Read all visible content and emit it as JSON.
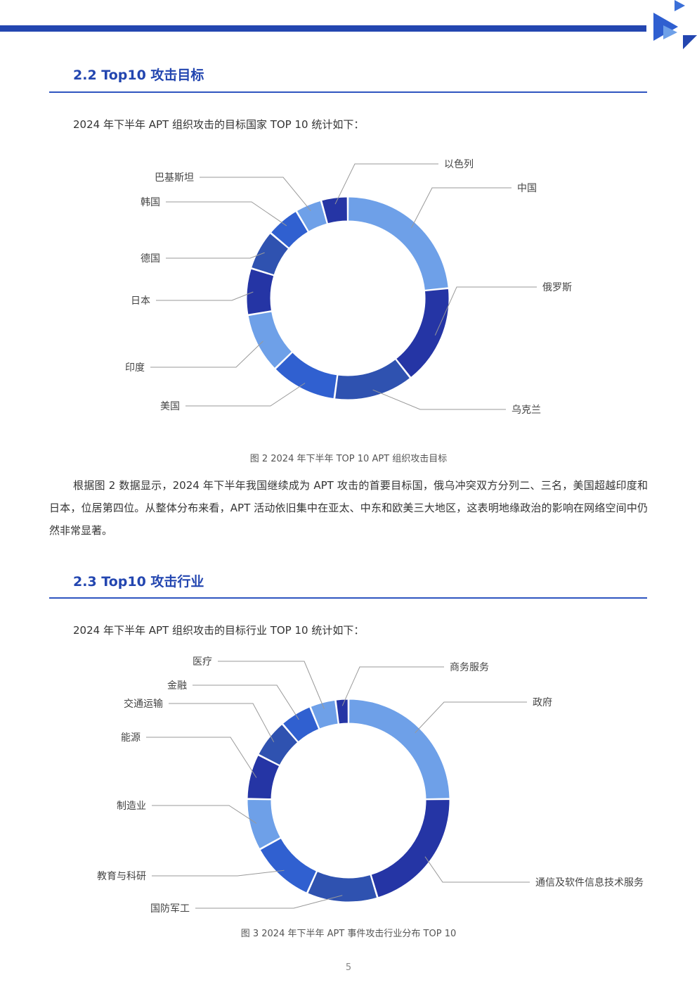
{
  "section1": {
    "heading": "2.2 Top10 攻击目标",
    "intro": "2024 年下半年 APT 组织攻击的目标国家 TOP 10 统计如下：",
    "caption": "图 2 2024 年下半年 TOP 10 APT 组织攻击目标",
    "paragraph": "根据图 2 数据显示，2024 年下半年我国继续成为 APT 攻击的首要目标国，俄乌冲突双方分列二、三名，美国超越印度和日本，位居第四位。从整体分布来看，APT 活动依旧集中在亚太、中东和欧美三大地区，这表明地缘政治的影响在网络空间中仍然非常显著。"
  },
  "section2": {
    "heading": "2.3 Top10 攻击行业",
    "intro": "2024 年下半年 APT 组织攻击的目标行业 TOP 10 统计如下：",
    "caption": "图 3 2024 年下半年 APT 事件攻击行业分布 TOP 10"
  },
  "page_number": "5",
  "colors": {
    "accent": "#2346b0",
    "light_blue": "#6ea0e8",
    "dark_blue": "#2535a5",
    "mid_blue": "#3060d0",
    "steel_blue": "#2f52b0"
  },
  "chart_data": [
    {
      "type": "pie",
      "donut": true,
      "categories": [
        "中国",
        "俄罗斯",
        "乌克兰",
        "美国",
        "印度",
        "日本",
        "德国",
        "韩国",
        "巴基斯坦",
        "以色列"
      ],
      "values": [
        22,
        15,
        12,
        10,
        9,
        7,
        6,
        5,
        4,
        4
      ],
      "colors": [
        "#6ea0e8",
        "#2535a5",
        "#2f52b0",
        "#3060d0",
        "#6ea0e8",
        "#2535a5",
        "#2f52b0",
        "#3060d0",
        "#6ea0e8",
        "#2535a5"
      ]
    },
    {
      "type": "pie",
      "donut": true,
      "categories": [
        "政府",
        "通信及软件信息技术服务",
        "国防军工",
        "教育与科研",
        "制造业",
        "能源",
        "交通运输",
        "金融",
        "医疗",
        "商务服务"
      ],
      "values": [
        24,
        20,
        11,
        10,
        8,
        7,
        6,
        5,
        4,
        2
      ],
      "colors": [
        "#6ea0e8",
        "#2535a5",
        "#2f52b0",
        "#3060d0",
        "#6ea0e8",
        "#2535a5",
        "#2f52b0",
        "#3060d0",
        "#6ea0e8",
        "#2535a5"
      ]
    }
  ]
}
